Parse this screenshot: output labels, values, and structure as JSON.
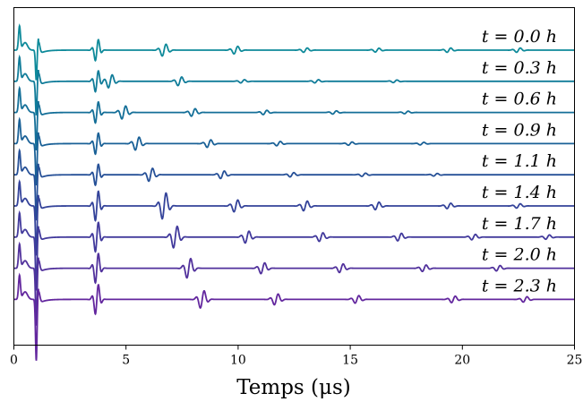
{
  "chart_data": {
    "type": "line",
    "xlabel": "Temps (μs)",
    "xlim": [
      0,
      25
    ],
    "xticks": [
      0,
      5,
      10,
      15,
      20,
      25
    ],
    "yticks_visible": false,
    "grid": false,
    "legend": "none",
    "series": [
      {
        "name": "t = 0.0 h",
        "color": "#0e8a9a",
        "baseline_y": 0,
        "packets": [
          {
            "t": 3.7,
            "a": 1.0
          },
          {
            "t": 6.7,
            "a": 0.55
          },
          {
            "t": 9.9,
            "a": 0.35
          },
          {
            "t": 13.0,
            "a": 0.2
          },
          {
            "t": 16.2,
            "a": 0.18
          },
          {
            "t": 19.4,
            "a": 0.2
          },
          {
            "t": 22.5,
            "a": 0.2
          }
        ]
      },
      {
        "name": "t = 0.3 h",
        "color": "#107c99",
        "baseline_y": 1,
        "packets": [
          {
            "t": 3.7,
            "a": 1.0
          },
          {
            "t": 4.3,
            "a": 0.6
          },
          {
            "t": 7.4,
            "a": 0.4
          },
          {
            "t": 10.2,
            "a": 0.15
          },
          {
            "t": 13.5,
            "a": 0.15
          },
          {
            "t": 17.0,
            "a": 0.12
          }
        ]
      },
      {
        "name": "t = 0.6 h",
        "color": "#146f98",
        "baseline_y": 2,
        "packets": [
          {
            "t": 3.7,
            "a": 1.0
          },
          {
            "t": 4.9,
            "a": 0.6
          },
          {
            "t": 8.0,
            "a": 0.35
          },
          {
            "t": 11.2,
            "a": 0.2
          },
          {
            "t": 14.3,
            "a": 0.15
          },
          {
            "t": 17.5,
            "a": 0.12
          }
        ]
      },
      {
        "name": "t = 0.9 h",
        "color": "#1a6197",
        "baseline_y": 3,
        "packets": [
          {
            "t": 3.7,
            "a": 1.0
          },
          {
            "t": 5.5,
            "a": 0.6
          },
          {
            "t": 8.7,
            "a": 0.35
          },
          {
            "t": 11.8,
            "a": 0.2
          },
          {
            "t": 15.0,
            "a": 0.15
          },
          {
            "t": 18.2,
            "a": 0.12
          }
        ]
      },
      {
        "name": "t = 1.1 h",
        "color": "#265097",
        "baseline_y": 4,
        "packets": [
          {
            "t": 3.7,
            "a": 1.0
          },
          {
            "t": 6.1,
            "a": 0.6
          },
          {
            "t": 9.3,
            "a": 0.35
          },
          {
            "t": 12.4,
            "a": 0.2
          },
          {
            "t": 15.6,
            "a": 0.15
          },
          {
            "t": 18.8,
            "a": 0.12
          }
        ]
      },
      {
        "name": "t = 1.4 h",
        "color": "#34439a",
        "baseline_y": 5,
        "packets": [
          {
            "t": 3.7,
            "a": 1.4
          },
          {
            "t": 6.7,
            "a": 1.2
          },
          {
            "t": 9.9,
            "a": 0.55
          },
          {
            "t": 13.0,
            "a": 0.45
          },
          {
            "t": 16.2,
            "a": 0.35
          },
          {
            "t": 19.4,
            "a": 0.25
          },
          {
            "t": 22.5,
            "a": 0.2
          }
        ]
      },
      {
        "name": "t = 1.7 h",
        "color": "#423a9c",
        "baseline_y": 6,
        "packets": [
          {
            "t": 3.7,
            "a": 1.4
          },
          {
            "t": 7.2,
            "a": 1.0
          },
          {
            "t": 10.4,
            "a": 0.55
          },
          {
            "t": 13.7,
            "a": 0.4
          },
          {
            "t": 17.2,
            "a": 0.35
          },
          {
            "t": 20.5,
            "a": 0.25
          },
          {
            "t": 23.8,
            "a": 0.2
          }
        ]
      },
      {
        "name": "t = 2.0 h",
        "color": "#51319c",
        "baseline_y": 7,
        "packets": [
          {
            "t": 3.7,
            "a": 1.4
          },
          {
            "t": 7.8,
            "a": 0.9
          },
          {
            "t": 11.1,
            "a": 0.5
          },
          {
            "t": 14.6,
            "a": 0.4
          },
          {
            "t": 18.3,
            "a": 0.3
          },
          {
            "t": 21.6,
            "a": 0.25
          }
        ]
      },
      {
        "name": "t = 2.3 h",
        "color": "#63279e",
        "baseline_y": 8,
        "packets": [
          {
            "t": 3.7,
            "a": 1.4
          },
          {
            "t": 8.4,
            "a": 0.8
          },
          {
            "t": 11.7,
            "a": 0.5
          },
          {
            "t": 15.3,
            "a": 0.35
          },
          {
            "t": 19.6,
            "a": 0.3
          },
          {
            "t": 22.8,
            "a": 0.25
          }
        ]
      }
    ]
  }
}
